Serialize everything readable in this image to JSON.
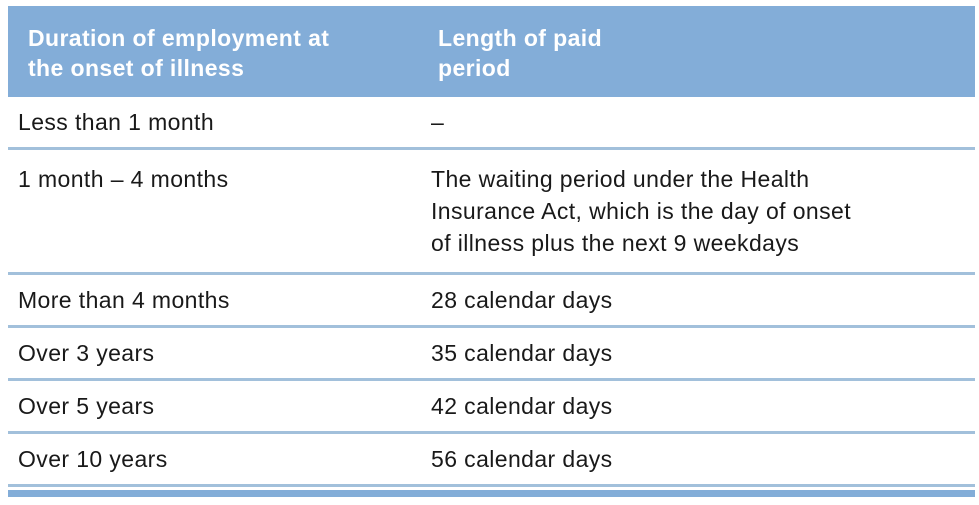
{
  "table": {
    "header": {
      "duration": "Duration of employment at\nthe onset of illness",
      "paid_period": "Length of paid\nperiod"
    },
    "rows": [
      {
        "duration": "Less than 1 month",
        "paid_period": "–"
      },
      {
        "duration": "1 month – 4 months",
        "paid_period": "The waiting period under the Health\nInsurance Act, which is the day of onset\nof illness plus the next 9 weekdays"
      },
      {
        "duration": "More than 4 months",
        "paid_period": "28 calendar days"
      },
      {
        "duration": "Over 3 years",
        "paid_period": "35 calendar days"
      },
      {
        "duration": "Over 5 years",
        "paid_period": "42 calendar days"
      },
      {
        "duration": "Over 10 years",
        "paid_period": "56 calendar days"
      }
    ],
    "colors": {
      "header_bg": "#83ADD8",
      "header_text": "#FFFFFF",
      "row_divider": "#A2C0DB",
      "bottom_bar": "#83ADD8",
      "body_text": "#191919"
    }
  }
}
